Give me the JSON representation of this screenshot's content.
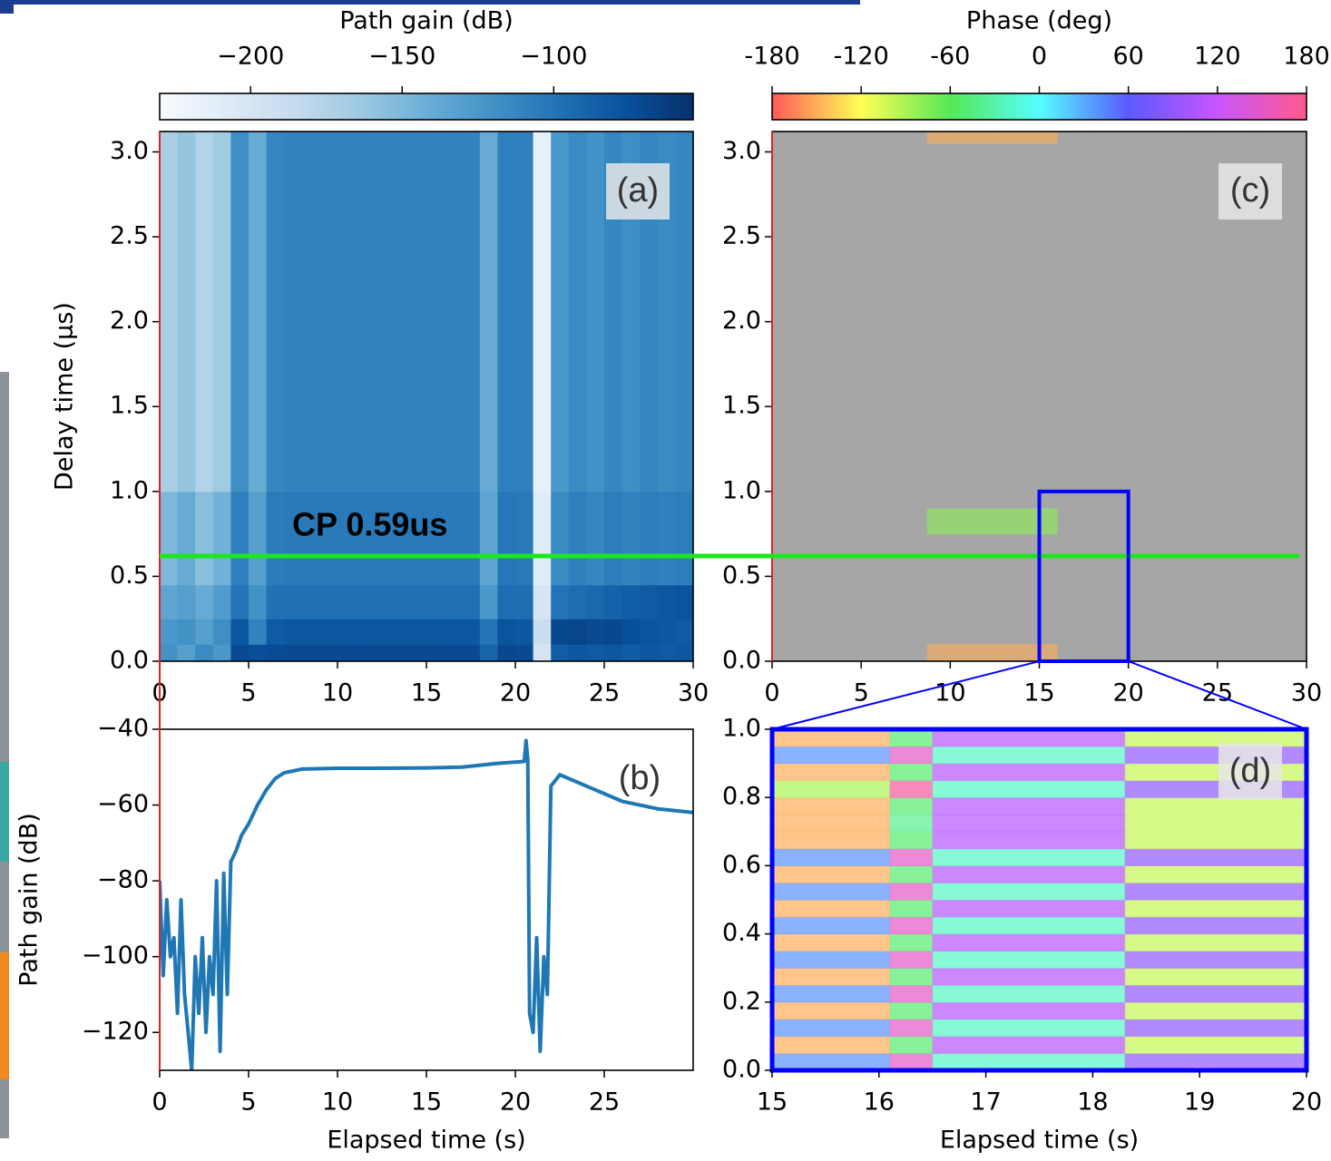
{
  "chart_data": [
    {
      "type": "heatmap",
      "panel_label": "(a)",
      "ylabel": "Delay time (µs)",
      "xlim": [
        0,
        30
      ],
      "xticks": [
        0,
        5,
        10,
        15,
        20,
        25,
        30
      ],
      "ylim": [
        0,
        3.12
      ],
      "yticks": [
        {
          "value": 0,
          "label": "0.0"
        },
        {
          "value": 0.5,
          "label": "0.5"
        },
        {
          "value": 1,
          "label": "1.0"
        },
        {
          "value": 1.5,
          "label": "1.5"
        },
        {
          "value": 2,
          "label": "2.0"
        },
        {
          "value": 2.5,
          "label": "2.5"
        },
        {
          "value": 3,
          "label": "3.0"
        }
      ],
      "x_edges": [
        0,
        1,
        2,
        3,
        4,
        5,
        6,
        7,
        8,
        9,
        10,
        11,
        12,
        13,
        14,
        15,
        16,
        17,
        18,
        19,
        20,
        21,
        22,
        23,
        24,
        25,
        26,
        27,
        28,
        29,
        30
      ],
      "y_edges": [
        0,
        0.1,
        0.25,
        0.45,
        1.0,
        3.12
      ],
      "z": [
        [
          -120,
          -130,
          -115,
          -125,
          -72,
          -75,
          -73,
          -72,
          -72,
          -72,
          -72,
          -72,
          -72,
          -72,
          -72,
          -72,
          -72,
          -72,
          -90,
          -70,
          -72,
          -200,
          -85,
          -80,
          -82,
          -80,
          -84,
          -80,
          -82,
          -80
        ],
        [
          -125,
          -120,
          -130,
          -118,
          -80,
          -110,
          -82,
          -80,
          -80,
          -80,
          -80,
          -80,
          -80,
          -80,
          -80,
          -80,
          -80,
          -80,
          -100,
          -78,
          -80,
          -190,
          -70,
          -68,
          -72,
          -70,
          -75,
          -78,
          -80,
          -82
        ],
        [
          -135,
          -130,
          -140,
          -128,
          -100,
          -120,
          -98,
          -97,
          -97,
          -97,
          -97,
          -97,
          -97,
          -97,
          -97,
          -97,
          -97,
          -97,
          -125,
          -95,
          -96,
          -200,
          -100,
          -95,
          -92,
          -88,
          -85,
          -82,
          -80,
          -78
        ],
        [
          -150,
          -140,
          -155,
          -145,
          -108,
          -130,
          -105,
          -104,
          -104,
          -104,
          -104,
          -104,
          -104,
          -104,
          -104,
          -104,
          -104,
          -104,
          -135,
          -102,
          -103,
          -210,
          -115,
          -108,
          -112,
          -106,
          -110,
          -106,
          -108,
          -106
        ],
        [
          -170,
          -160,
          -175,
          -165,
          -118,
          -140,
          -112,
          -110,
          -110,
          -110,
          -110,
          -110,
          -110,
          -110,
          -110,
          -110,
          -110,
          -110,
          -140,
          -108,
          -108,
          -215,
          -125,
          -115,
          -120,
          -112,
          -118,
          -112,
          -115,
          -112
        ]
      ],
      "colorbar": {
        "label": "Path gain (dB)",
        "lim": [
          -230,
          -54
        ],
        "ticks": [
          {
            "value": -200,
            "label": "−200"
          },
          {
            "value": -150,
            "label": "−150"
          },
          {
            "value": -100,
            "label": "−100"
          }
        ],
        "colormap": [
          "#f7fbff",
          "#deebf7",
          "#c6dbef",
          "#9ecae1",
          "#6baed6",
          "#4292c6",
          "#2171b5",
          "#08519c",
          "#08306b"
        ]
      },
      "annotation": {
        "text": "CP 0.59us",
        "value": 0.62,
        "color": "#1ee61e"
      }
    },
    {
      "type": "line",
      "panel_label": "(b)",
      "ylabel": "Path gain (dB)",
      "xlabel": "Elapsed time (s)",
      "color": "#1f77b4",
      "xlim": [
        0,
        30
      ],
      "xticks": [
        0,
        5,
        10,
        15,
        20,
        25
      ],
      "ylim": [
        -130,
        -40
      ],
      "yticks": [
        {
          "value": -40,
          "label": "−40"
        },
        {
          "value": -60,
          "label": "−60"
        },
        {
          "value": -80,
          "label": "−80"
        },
        {
          "value": -100,
          "label": "−100"
        },
        {
          "value": -120,
          "label": "−120"
        }
      ],
      "x": [
        0,
        0.2,
        0.4,
        0.6,
        0.8,
        1.0,
        1.2,
        1.4,
        1.6,
        1.8,
        2.0,
        2.2,
        2.4,
        2.6,
        2.8,
        3.0,
        3.2,
        3.4,
        3.6,
        3.8,
        4.0,
        4.3,
        4.6,
        5.0,
        5.5,
        6.0,
        6.5,
        7.0,
        8,
        10,
        12,
        15,
        17,
        19,
        20.5,
        20.6,
        20.7,
        20.8,
        21.0,
        21.2,
        21.4,
        21.6,
        21.8,
        22.0,
        22.5,
        23,
        24,
        25,
        26,
        27,
        28,
        29,
        30
      ],
      "values": [
        -80,
        -105,
        -85,
        -100,
        -95,
        -115,
        -85,
        -110,
        -120,
        -130,
        -100,
        -115,
        -95,
        -120,
        -100,
        -110,
        -80,
        -125,
        -78,
        -110,
        -75,
        -72,
        -68,
        -65,
        -60,
        -56,
        -53,
        -51.5,
        -50.5,
        -50.3,
        -50.3,
        -50.2,
        -50,
        -49,
        -48.5,
        -43,
        -48,
        -115,
        -120,
        -95,
        -125,
        -100,
        -110,
        -55,
        -52,
        -53,
        -55,
        -57,
        -59,
        -60,
        -61,
        -61.5,
        -62
      ]
    },
    {
      "type": "heatmap",
      "panel_label": "(c)",
      "nan_color": "#a6a6a6",
      "xlim": [
        0,
        30
      ],
      "xticks": [
        0,
        5,
        10,
        15,
        20,
        25,
        30
      ],
      "ylim": [
        0,
        3.12
      ],
      "yticks": [
        {
          "value": 0,
          "label": "0.0"
        },
        {
          "value": 0.5,
          "label": "0.5"
        },
        {
          "value": 1,
          "label": "1.0"
        },
        {
          "value": 1.5,
          "label": "1.5"
        },
        {
          "value": 2,
          "label": "2.0"
        },
        {
          "value": 2.5,
          "label": "2.5"
        },
        {
          "value": 3,
          "label": "3.0"
        }
      ],
      "x_edges": [
        0,
        8.7,
        16,
        30
      ],
      "y_edges": [
        0,
        0.1,
        0.75,
        0.9,
        3.05,
        3.12
      ],
      "z": [
        [
          null,
          -150,
          null
        ],
        [
          null,
          null,
          null
        ],
        [
          null,
          -80,
          null
        ],
        [
          null,
          null,
          null
        ],
        [
          null,
          -150,
          null
        ]
      ],
      "colorbar": {
        "label": "Phase (deg)",
        "lim": [
          -180,
          180
        ],
        "ticks": [
          -180,
          -120,
          -60,
          0,
          60,
          120,
          180
        ],
        "colormap": [
          "#ff5a5a",
          "#ffff55",
          "#55e855",
          "#55ffff",
          "#5a5aff",
          "#c855ff",
          "#ff5a8c"
        ]
      },
      "inset_box": {
        "xlim": [
          15,
          20
        ],
        "ylim": [
          0,
          1
        ]
      }
    },
    {
      "type": "heatmap",
      "panel_label": "(d)",
      "xlabel": "Elapsed time (s)",
      "xlim": [
        15,
        20
      ],
      "xticks": [
        15,
        16,
        17,
        18,
        19,
        20
      ],
      "ylim": [
        0,
        1
      ],
      "yticks": [
        {
          "value": 0,
          "label": "0.0"
        },
        {
          "value": 0.2,
          "label": "0.2"
        },
        {
          "value": 0.4,
          "label": "0.4"
        },
        {
          "value": 0.6,
          "label": "0.6"
        },
        {
          "value": 0.8,
          "label": "0.8"
        },
        {
          "value": 1,
          "label": "1.0"
        }
      ],
      "x_edges": [
        15,
        16.1,
        16.5,
        18.3,
        20
      ],
      "y_edges": [
        0,
        0.05,
        0.1,
        0.15,
        0.2,
        0.25,
        0.3,
        0.35,
        0.4,
        0.45,
        0.5,
        0.55,
        0.6,
        0.65,
        0.7,
        0.75,
        0.8,
        0.85,
        0.9,
        0.95,
        1.0
      ],
      "z": [
        [
          40,
          150,
          -20,
          90
        ],
        [
          -150,
          -50,
          110,
          -100
        ],
        [
          40,
          150,
          -20,
          90
        ],
        [
          -150,
          -50,
          110,
          -100
        ],
        [
          40,
          150,
          -20,
          90
        ],
        [
          -150,
          -50,
          110,
          -100
        ],
        [
          40,
          150,
          -20,
          90
        ],
        [
          -150,
          -50,
          110,
          -100
        ],
        [
          40,
          150,
          -20,
          90
        ],
        [
          -150,
          -50,
          110,
          -100
        ],
        [
          40,
          150,
          -20,
          90
        ],
        [
          -150,
          -50,
          110,
          -100
        ],
        [
          40,
          150,
          -20,
          90
        ],
        [
          -150,
          -50,
          110,
          -100
        ],
        [
          -150,
          -40,
          110,
          -100
        ],
        [
          -150,
          -50,
          110,
          -100
        ],
        [
          -90,
          170,
          -20,
          90
        ],
        [
          -150,
          -50,
          110,
          -100
        ],
        [
          40,
          150,
          -20,
          90
        ],
        [
          -150,
          -50,
          110,
          -100
        ]
      ]
    }
  ]
}
